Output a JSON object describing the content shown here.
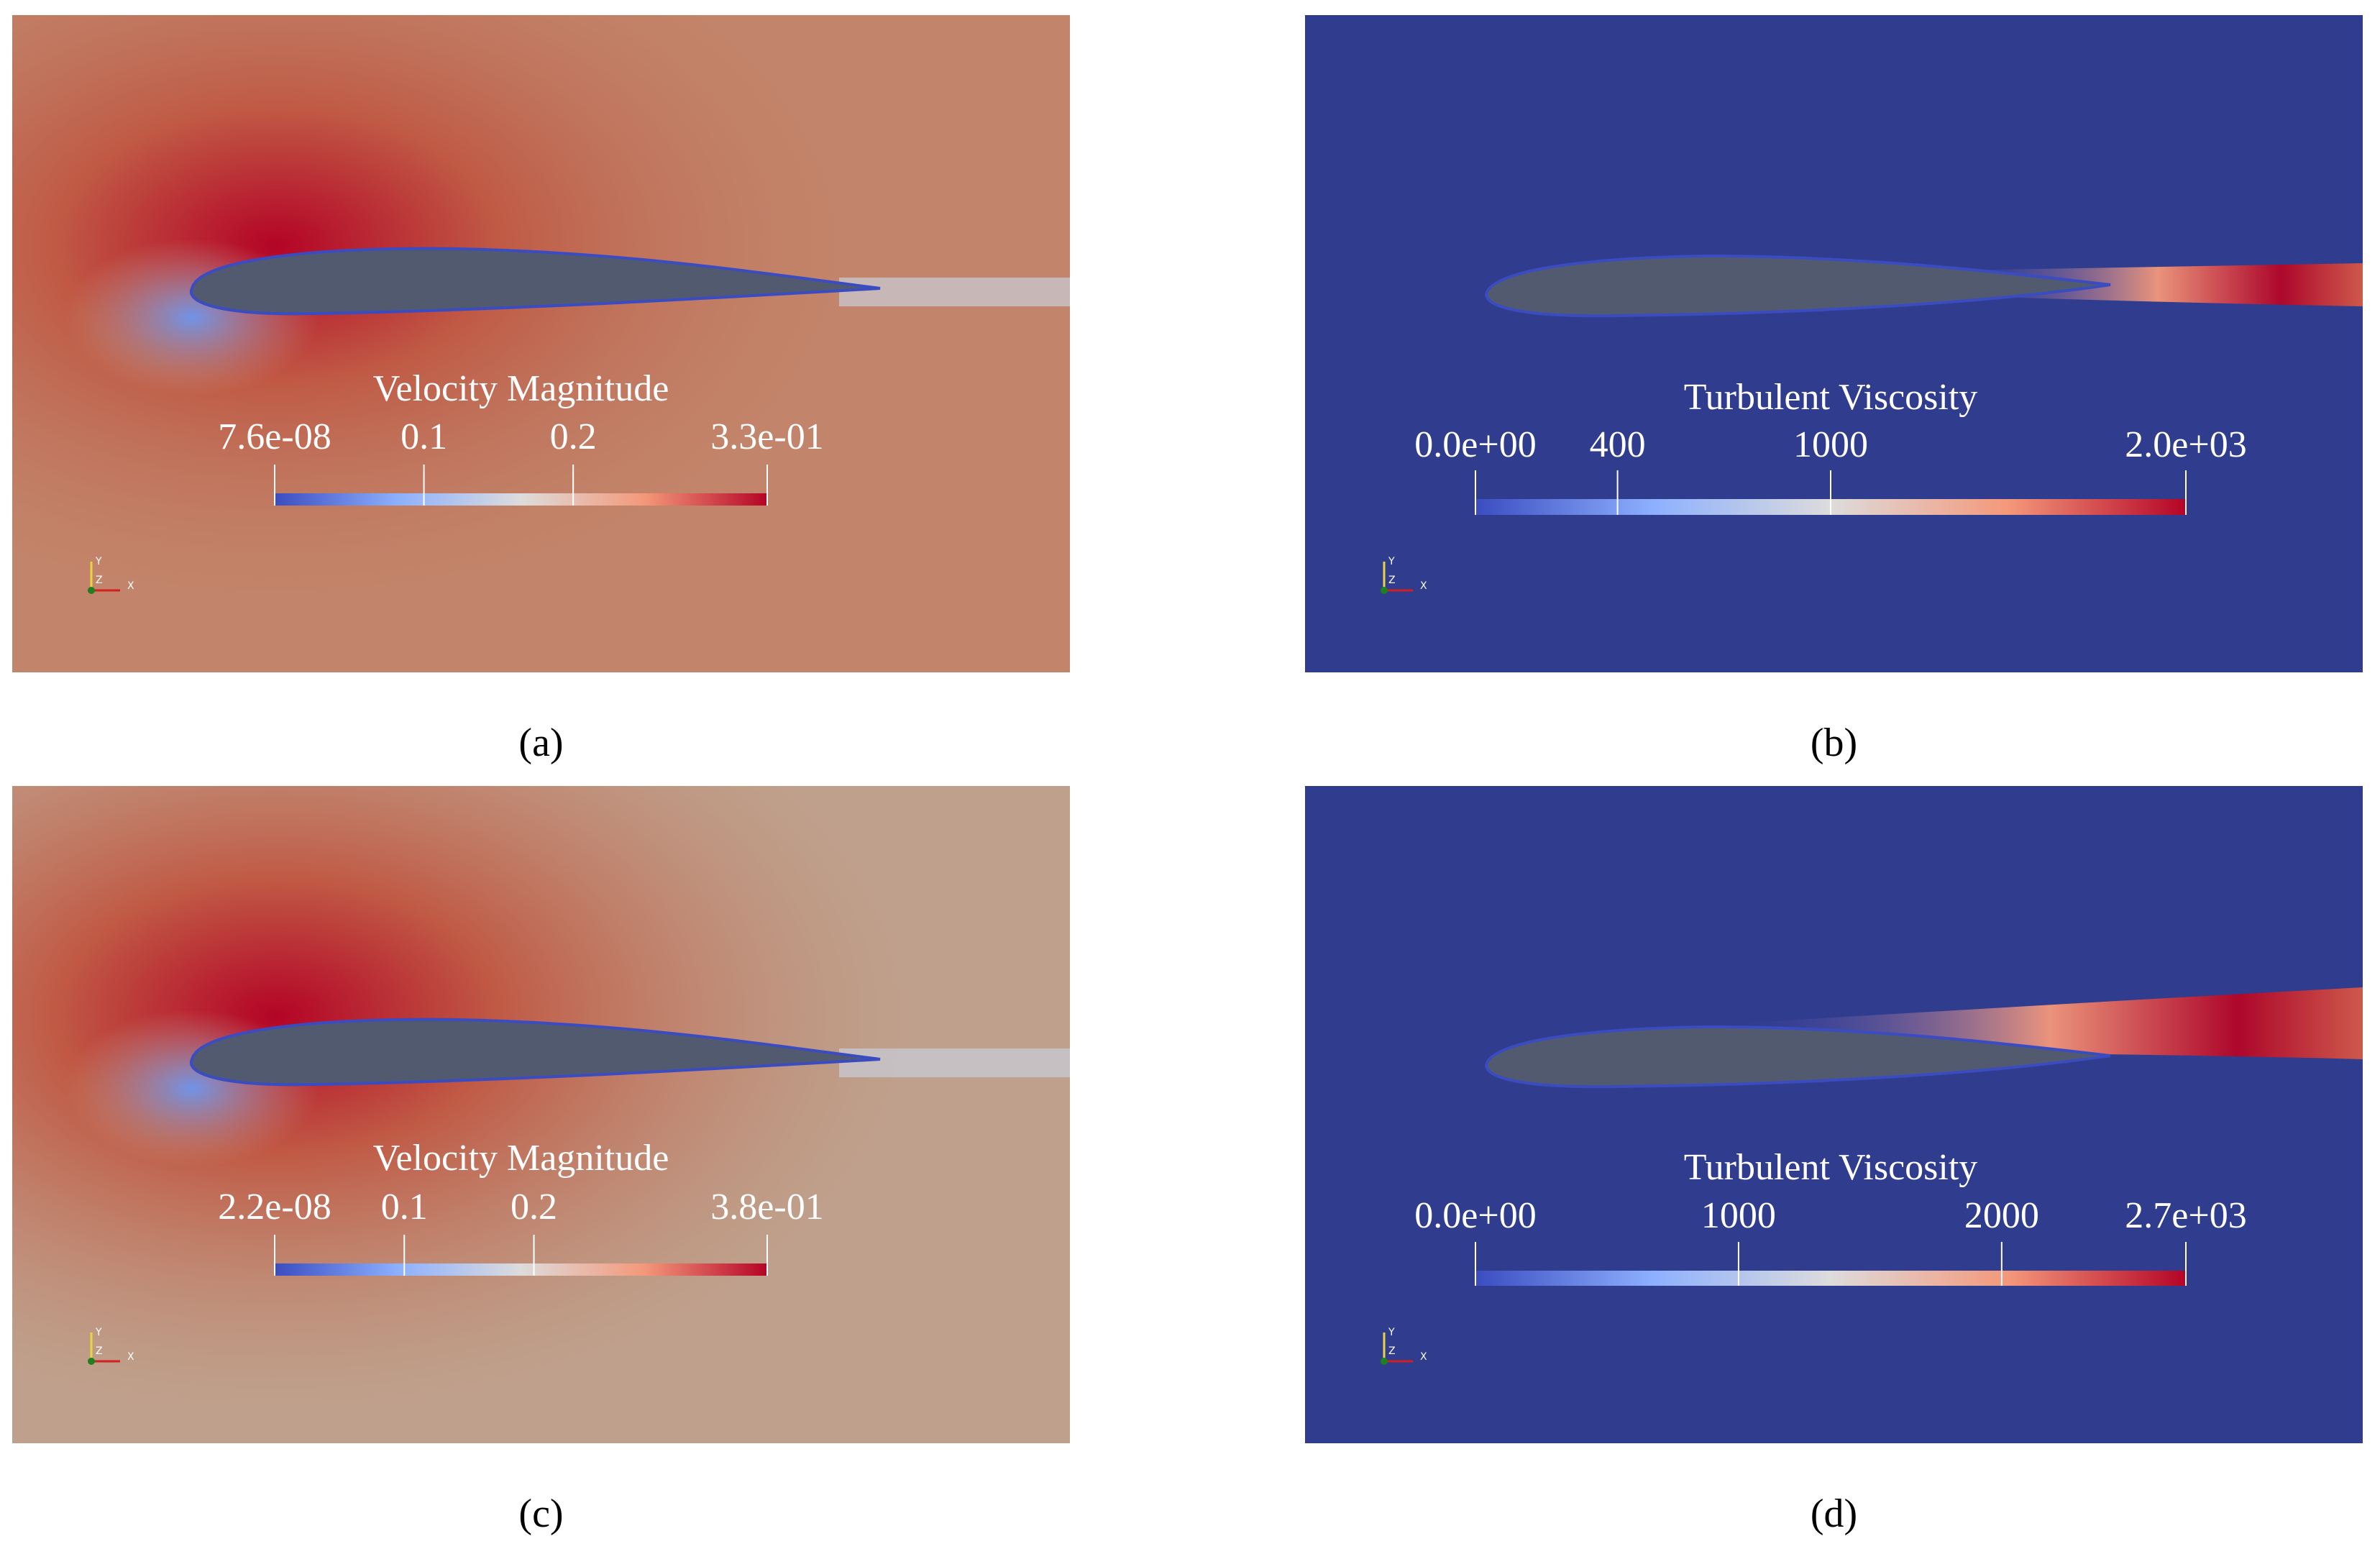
{
  "triad_labels": {
    "y": "Y",
    "z": "Z",
    "x": "X"
  },
  "panels": [
    {
      "caption": "(a)",
      "field": "velocity",
      "colorbar": {
        "title": "Velocity Magnitude",
        "ticks": [
          {
            "value": 7.6e-08,
            "label": "7.6e-08"
          },
          0.1,
          0.2,
          {
            "value": 0.33,
            "label": "3.3e-01"
          }
        ]
      }
    },
    {
      "caption": "(b)",
      "field": "viscosity",
      "colorbar": {
        "title": "Turbulent Viscosity",
        "ticks": [
          {
            "value": 0,
            "label": "0.0e+00"
          },
          400,
          1000,
          {
            "value": 2000,
            "label": "2.0e+03"
          }
        ]
      }
    },
    {
      "caption": "(c)",
      "field": "velocity",
      "colorbar": {
        "title": "Velocity Magnitude",
        "ticks": [
          {
            "value": 2.2e-08,
            "label": "2.2e-08"
          },
          0.1,
          0.2,
          {
            "value": 0.38,
            "label": "3.8e-01"
          }
        ]
      }
    },
    {
      "caption": "(d)",
      "field": "viscosity",
      "colorbar": {
        "title": "Turbulent Viscosity",
        "ticks": [
          {
            "value": 0,
            "label": "0.0e+00"
          },
          1000,
          2000,
          {
            "value": 2700,
            "label": "2.7e+03"
          }
        ]
      }
    }
  ]
}
